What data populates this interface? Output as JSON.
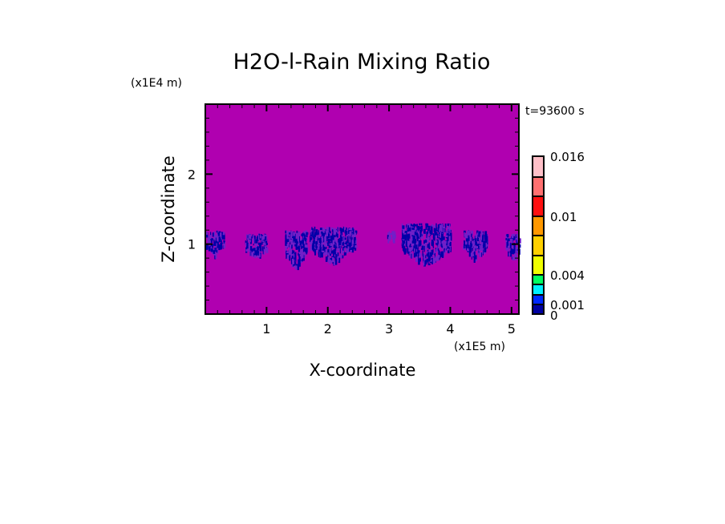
{
  "chart_data": {
    "type": "heatmap",
    "title": "H2O-l-Rain Mixing Ratio",
    "xlabel": "X-coordinate",
    "ylabel": "Z-coordinate",
    "x_unit": "(x1E5 m)",
    "y_unit": "(x1E4 m)",
    "time_label": "t=93600 s",
    "xlim": [
      0,
      5.12
    ],
    "ylim": [
      0,
      3.0
    ],
    "x_ticks": [
      1,
      2,
      3,
      4,
      5
    ],
    "y_ticks": [
      1,
      2
    ],
    "x_tick_labels": [
      "1",
      "2",
      "3",
      "4",
      "5"
    ],
    "y_tick_labels": [
      "1",
      "2"
    ],
    "background_color": "#b000b0",
    "colorbar": {
      "levels": [
        0,
        0.001,
        0.002,
        0.003,
        0.004,
        0.006,
        0.008,
        0.01,
        0.012,
        0.014,
        0.016
      ],
      "colors": [
        "#0000a0",
        "#0028ff",
        "#00f0ff",
        "#00ff60",
        "#f0ff00",
        "#ffd000",
        "#ff9800",
        "#ff1010",
        "#ff7070",
        "#ffc0c8"
      ],
      "tick_values": [
        0,
        0.001,
        0.004,
        0.01,
        0.016
      ],
      "tick_labels": [
        "0",
        "0.001",
        "0.004",
        "0.01",
        "0.016"
      ]
    },
    "rain_clusters": [
      {
        "x": [
          0.0,
          0.3
        ],
        "z": [
          0.85,
          1.2
        ]
      },
      {
        "x": [
          0.65,
          1.0
        ],
        "z": [
          0.8,
          1.15
        ]
      },
      {
        "x": [
          1.3,
          1.65
        ],
        "z": [
          0.65,
          1.2
        ]
      },
      {
        "x": [
          1.7,
          2.45
        ],
        "z": [
          0.75,
          1.25
        ]
      },
      {
        "x": [
          2.95,
          3.1
        ],
        "z": [
          1.05,
          1.2
        ]
      },
      {
        "x": [
          3.2,
          4.0
        ],
        "z": [
          0.7,
          1.3
        ]
      },
      {
        "x": [
          4.2,
          4.6
        ],
        "z": [
          0.8,
          1.2
        ]
      },
      {
        "x": [
          4.9,
          5.12
        ],
        "z": [
          0.8,
          1.15
        ]
      }
    ],
    "grid": false,
    "legend": "right"
  }
}
